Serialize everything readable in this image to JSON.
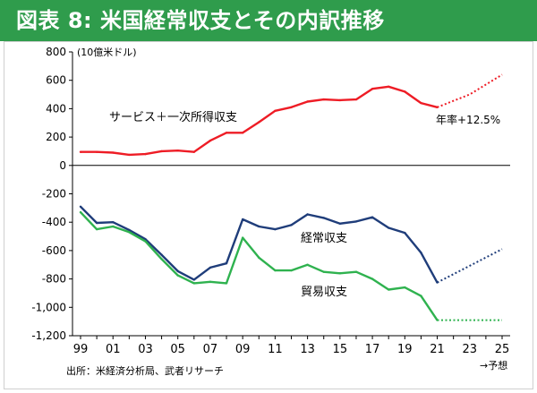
{
  "title": "図表 8: 米国経常収支とその内訳推移",
  "chart_data": {
    "type": "line",
    "unit_label": "(10億米ドル)",
    "ylim": [
      -1200,
      800
    ],
    "y_ticks": [
      800,
      600,
      400,
      200,
      0,
      -200,
      -400,
      -600,
      -800,
      -1000,
      -1200
    ],
    "y_tick_labels": [
      "800",
      "600",
      "400",
      "200",
      "0",
      "-200",
      "-400",
      "-600",
      "-800",
      "-1,000",
      "-1,200"
    ],
    "x_start": 1999,
    "x_end": 2025,
    "x_tick_labels": [
      {
        "year": 1999,
        "label": "99"
      },
      {
        "year": 2001,
        "label": "01"
      },
      {
        "year": 2003,
        "label": "03"
      },
      {
        "year": 2005,
        "label": "05"
      },
      {
        "year": 2007,
        "label": "07"
      },
      {
        "year": 2009,
        "label": "09"
      },
      {
        "year": 2011,
        "label": "11"
      },
      {
        "year": 2013,
        "label": "13"
      },
      {
        "year": 2015,
        "label": "15"
      },
      {
        "year": 2017,
        "label": "17"
      },
      {
        "year": 2019,
        "label": "19"
      },
      {
        "year": 2021,
        "label": "21"
      },
      {
        "year": 2023,
        "label": "23"
      },
      {
        "year": 2025,
        "label": "25"
      }
    ],
    "forecast_note": "→予想",
    "series": [
      {
        "name": "サービス＋一次所得収支",
        "color": "#ee1c25",
        "years": [
          1999,
          2000,
          2001,
          2002,
          2003,
          2004,
          2005,
          2006,
          2007,
          2008,
          2009,
          2010,
          2011,
          2012,
          2013,
          2014,
          2015,
          2016,
          2017,
          2018,
          2019,
          2020,
          2021
        ],
        "values": [
          95,
          95,
          90,
          75,
          80,
          100,
          105,
          95,
          175,
          230,
          230,
          305,
          385,
          410,
          450,
          465,
          460,
          465,
          540,
          555,
          520,
          440,
          410
        ],
        "forecast": {
          "years": [
            2021,
            2023,
            2025
          ],
          "values": [
            410,
            500,
            640
          ]
        },
        "annotation": "年率+12.5%"
      },
      {
        "name": "経常収支",
        "color": "#1f3d7a",
        "years": [
          1999,
          2000,
          2001,
          2002,
          2003,
          2004,
          2005,
          2006,
          2007,
          2008,
          2009,
          2010,
          2011,
          2012,
          2013,
          2014,
          2015,
          2016,
          2017,
          2018,
          2019,
          2020,
          2021
        ],
        "values": [
          -290,
          -405,
          -400,
          -455,
          -520,
          -630,
          -745,
          -805,
          -720,
          -690,
          -380,
          -430,
          -450,
          -420,
          -345,
          -370,
          -410,
          -395,
          -365,
          -440,
          -475,
          -615,
          -825
        ],
        "forecast": {
          "years": [
            2021,
            2025
          ],
          "values": [
            -825,
            -590
          ]
        }
      },
      {
        "name": "貿易収支",
        "color": "#2fb24f",
        "years": [
          1999,
          2000,
          2001,
          2002,
          2003,
          2004,
          2005,
          2006,
          2007,
          2008,
          2009,
          2010,
          2011,
          2012,
          2013,
          2014,
          2015,
          2016,
          2017,
          2018,
          2019,
          2020,
          2021
        ],
        "values": [
          -330,
          -450,
          -430,
          -470,
          -535,
          -660,
          -775,
          -830,
          -820,
          -830,
          -510,
          -650,
          -740,
          -740,
          -700,
          -750,
          -760,
          -750,
          -800,
          -875,
          -860,
          -920,
          -1090
        ],
        "forecast": {
          "years": [
            2021,
            2025
          ],
          "values": [
            -1090,
            -1090
          ]
        }
      }
    ],
    "source": "出所：米経済分析局、武者リサーチ"
  }
}
